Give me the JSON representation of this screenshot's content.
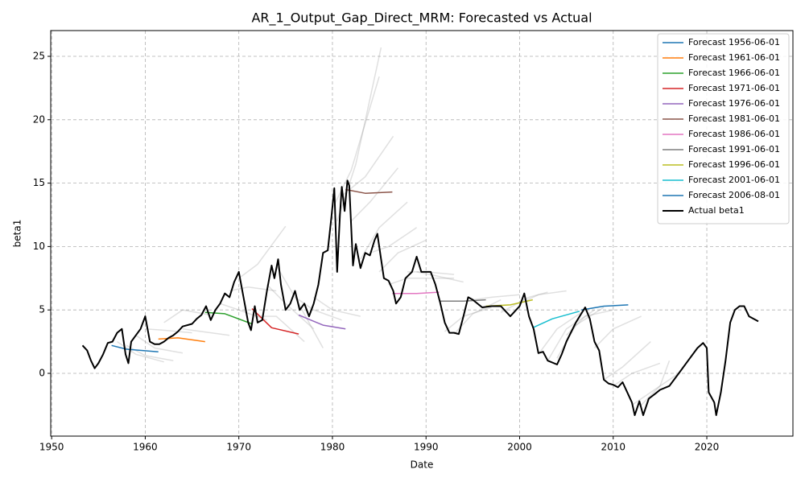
{
  "chart_data": {
    "type": "line",
    "title": "AR_1_Output_Gap_Direct_MRM: Forecasted vs Actual",
    "x_label": "Date",
    "y_label": "beta1",
    "xlim": [
      1949.9,
      2029.2
    ],
    "ylim": [
      -4.95,
      27.03
    ],
    "xticks": [
      1950,
      1960,
      1970,
      1980,
      1990,
      2000,
      2010,
      2020
    ],
    "yticks": [
      0,
      5,
      10,
      15,
      20,
      25
    ],
    "grid": true,
    "legend": "upper right",
    "gray_color": "#999999",
    "gray_forecasts": [
      {
        "x": [
          1957,
          1959,
          1962
        ],
        "values": [
          2.5,
          1.5,
          0.9
        ]
      },
      {
        "x": [
          1958,
          1960,
          1963
        ],
        "values": [
          2.2,
          1.4,
          1.0
        ]
      },
      {
        "x": [
          1959,
          1961,
          1964
        ],
        "values": [
          3.0,
          2.0,
          1.6
        ]
      },
      {
        "x": [
          1960,
          1962,
          1965
        ],
        "values": [
          3.5,
          3.4,
          3.2
        ]
      },
      {
        "x": [
          1962,
          1964,
          1967
        ],
        "values": [
          4.0,
          5.0,
          4.6
        ]
      },
      {
        "x": [
          1964,
          1966,
          1969
        ],
        "values": [
          3.5,
          3.3,
          3.0
        ]
      },
      {
        "x": [
          1968,
          1970,
          1973
        ],
        "values": [
          5.5,
          5.0,
          4.2
        ]
      },
      {
        "x": [
          1969,
          1971,
          1974
        ],
        "values": [
          6.5,
          6.8,
          6.5
        ]
      },
      {
        "x": [
          1970,
          1972,
          1975
        ],
        "values": [
          7.5,
          8.6,
          11.6
        ]
      },
      {
        "x": [
          1972,
          1974,
          1977
        ],
        "values": [
          4.5,
          4.5,
          2.5
        ]
      },
      {
        "x": [
          1973,
          1975,
          1978
        ],
        "values": [
          7,
          5.5,
          3.5
        ]
      },
      {
        "x": [
          1974,
          1976,
          1979
        ],
        "values": [
          8.5,
          6,
          2.0
        ]
      },
      {
        "x": [
          1976,
          1978,
          1981
        ],
        "values": [
          6,
          5,
          4.2
        ]
      },
      {
        "x": [
          1978,
          1980,
          1983
        ],
        "values": [
          6,
          5,
          4.5
        ]
      },
      {
        "x": [
          1980,
          1982,
          1985
        ],
        "values": [
          13,
          16,
          23.4
        ]
      },
      {
        "x": [
          1980.5,
          1982.5,
          1985.2
        ],
        "values": [
          12,
          16.5,
          25.7
        ]
      },
      {
        "x": [
          1981,
          1983.5,
          1986.5
        ],
        "values": [
          14,
          15.5,
          18.7
        ]
      },
      {
        "x": [
          1982,
          1984,
          1987
        ],
        "values": [
          12,
          13.5,
          16.2
        ]
      },
      {
        "x": [
          1983,
          1985,
          1988
        ],
        "values": [
          9,
          11.5,
          13.5
        ]
      },
      {
        "x": [
          1984,
          1986,
          1989
        ],
        "values": [
          9.5,
          10,
          11.5
        ]
      },
      {
        "x": [
          1985,
          1987,
          1990
        ],
        "values": [
          8,
          9.5,
          10.5
        ]
      },
      {
        "x": [
          1986,
          1988,
          1993
        ],
        "values": [
          7,
          7.5,
          7.5
        ]
      },
      {
        "x": [
          1988,
          1990,
          1993
        ],
        "values": [
          8,
          8,
          7.8
        ]
      },
      {
        "x": [
          1989,
          1991,
          1994
        ],
        "values": [
          8,
          7.7,
          7.2
        ]
      },
      {
        "x": [
          1992,
          1994,
          1997
        ],
        "values": [
          3.3,
          4.5,
          5.2
        ]
      },
      {
        "x": [
          1993,
          1995,
          1998
        ],
        "values": [
          3.1,
          4.7,
          5.8
        ]
      },
      {
        "x": [
          1995,
          1997,
          2000
        ],
        "values": [
          5.8,
          6.0,
          6.2
        ]
      },
      {
        "x": [
          1998,
          2001,
          2003
        ],
        "values": [
          4.8,
          6.0,
          6.4
        ]
      },
      {
        "x": [
          2000,
          2002,
          2005
        ],
        "values": [
          5.5,
          6.2,
          6.5
        ]
      },
      {
        "x": [
          2002,
          2004,
          2007
        ],
        "values": [
          1.5,
          3.5,
          5.0
        ]
      },
      {
        "x": [
          2003,
          2005,
          2008
        ],
        "values": [
          1.0,
          3.5,
          5.0
        ]
      },
      {
        "x": [
          2004,
          2006,
          2009
        ],
        "values": [
          1.2,
          3.8,
          5.2
        ]
      },
      {
        "x": [
          2005,
          2007,
          2010
        ],
        "values": [
          3,
          4.5,
          5.0
        ]
      },
      {
        "x": [
          2008,
          2010,
          2013
        ],
        "values": [
          2,
          3.5,
          4.5
        ]
      },
      {
        "x": [
          2009,
          2011,
          2014
        ],
        "values": [
          -0.5,
          0.5,
          2.5
        ]
      },
      {
        "x": [
          2010,
          2012,
          2015
        ],
        "values": [
          -1,
          0,
          0.8
        ]
      },
      {
        "x": [
          2012,
          2014,
          2017
        ],
        "values": [
          -2.5,
          -1.5,
          0
        ]
      },
      {
        "x": [
          2013,
          2015,
          2016
        ],
        "values": [
          -2.5,
          -1.0,
          1.0
        ]
      }
    ],
    "series": [
      {
        "name": "Forecast 1956-06-01",
        "color": "#1f77b4",
        "x": [
          1956.4,
          1958,
          1961.4
        ],
        "values": [
          2.2,
          1.9,
          1.7
        ]
      },
      {
        "name": "Forecast 1961-06-01",
        "color": "#ff7f0e",
        "x": [
          1961.4,
          1963.5,
          1966.4
        ],
        "values": [
          2.7,
          2.8,
          2.5
        ]
      },
      {
        "name": "Forecast 1966-06-01",
        "color": "#2ca02c",
        "x": [
          1966.4,
          1968.5,
          1971.4
        ],
        "values": [
          4.8,
          4.7,
          3.9
        ]
      },
      {
        "name": "Forecast 1971-06-01",
        "color": "#d62728",
        "x": [
          1971.4,
          1973.5,
          1976.4
        ],
        "values": [
          5.1,
          3.6,
          3.1
        ]
      },
      {
        "name": "Forecast 1976-06-01",
        "color": "#9467bd",
        "x": [
          1976.4,
          1979,
          1981.4
        ],
        "values": [
          4.6,
          3.8,
          3.5
        ]
      },
      {
        "name": "Forecast 1981-06-01",
        "color": "#8c564b",
        "x": [
          1981.4,
          1983.5,
          1986.4
        ],
        "values": [
          14.5,
          14.2,
          14.3
        ]
      },
      {
        "name": "Forecast 1986-06-01",
        "color": "#e377c2",
        "x": [
          1986.4,
          1989,
          1991.4
        ],
        "values": [
          6.3,
          6.3,
          6.4
        ]
      },
      {
        "name": "Forecast 1991-06-01",
        "color": "#7f7f7f",
        "x": [
          1991.4,
          1994,
          1996.4
        ],
        "values": [
          5.7,
          5.7,
          5.8
        ]
      },
      {
        "name": "Forecast 1996-06-01",
        "color": "#bcbd22",
        "x": [
          1996.4,
          1999,
          2001.4
        ],
        "values": [
          5.3,
          5.4,
          5.8
        ]
      },
      {
        "name": "Forecast 2001-06-01",
        "color": "#17becf",
        "x": [
          2001.4,
          2003.5,
          2006.4
        ],
        "values": [
          3.6,
          4.3,
          4.9
        ]
      },
      {
        "name": "Forecast 2006-08-01",
        "color": "#1f77b4",
        "x": [
          2006.6,
          2009,
          2011.6
        ],
        "values": [
          5.0,
          5.3,
          5.4
        ]
      },
      {
        "name": "Actual beta1",
        "color": "#000000",
        "width": 2,
        "x": [
          1953.3,
          1953.8,
          1954.2,
          1954.6,
          1955,
          1955.5,
          1956,
          1956.5,
          1957,
          1957.5,
          1957.9,
          1958.2,
          1958.5,
          1959,
          1959.5,
          1960,
          1960.5,
          1961,
          1961.5,
          1962,
          1962.5,
          1963,
          1963.5,
          1964,
          1965,
          1965.5,
          1966,
          1966.5,
          1967,
          1967.5,
          1968,
          1968.5,
          1969,
          1969.5,
          1970,
          1970.5,
          1971,
          1971.3,
          1971.7,
          1972,
          1972.5,
          1973,
          1973.5,
          1973.8,
          1974.2,
          1974.5,
          1975,
          1975.5,
          1976,
          1976.5,
          1977,
          1977.5,
          1978,
          1978.5,
          1979,
          1979.5,
          1979.9,
          1980.2,
          1980.5,
          1980.8,
          1981,
          1981.3,
          1981.6,
          1981.8,
          1982.2,
          1982.5,
          1983,
          1983.5,
          1984,
          1984.5,
          1984.8,
          1985.2,
          1985.5,
          1986,
          1986.5,
          1986.8,
          1987.3,
          1987.8,
          1988.5,
          1989,
          1989.5,
          1990,
          1990.5,
          1991,
          1991.5,
          1992,
          1992.5,
          1993,
          1993.5,
          1994,
          1994.5,
          1995,
          1996,
          1997,
          1998,
          1999,
          2000,
          2000.5,
          2001,
          2001.5,
          2002,
          2002.5,
          2003,
          2004,
          2004.5,
          2005,
          2006,
          2007,
          2007.5,
          2008,
          2008.5,
          2009,
          2009.5,
          2010,
          2010.5,
          2011,
          2011.5,
          2012,
          2012.3,
          2012.8,
          2013.2,
          2013.8,
          2014.5,
          2015,
          2016,
          2017,
          2018,
          2019,
          2019.6,
          2020,
          2020.2,
          2020.8,
          2021,
          2021.5,
          2022,
          2022.5,
          2023,
          2023.5,
          2024,
          2024.5,
          2025.5
        ],
        "values": [
          2.2,
          1.8,
          1.0,
          0.4,
          0.8,
          1.5,
          2.4,
          2.5,
          3.2,
          3.5,
          1.5,
          0.8,
          2.5,
          3.0,
          3.5,
          4.5,
          2.5,
          2.3,
          2.3,
          2.5,
          2.8,
          3.0,
          3.3,
          3.7,
          3.9,
          4.3,
          4.6,
          5.3,
          4.2,
          5.0,
          5.5,
          6.3,
          6.0,
          7.2,
          8.0,
          6.0,
          4.0,
          3.4,
          5.3,
          4.0,
          4.2,
          6.5,
          8.5,
          7.5,
          9.0,
          7.0,
          5.0,
          5.5,
          6.5,
          5.0,
          5.5,
          4.5,
          5.5,
          7.0,
          9.5,
          9.7,
          12.4,
          14.6,
          8.0,
          12.5,
          14.7,
          12.8,
          15.2,
          14.8,
          8.5,
          10.2,
          8.3,
          9.5,
          9.3,
          10.5,
          11.0,
          9.0,
          7.5,
          7.3,
          6.5,
          5.5,
          6.0,
          7.5,
          8.0,
          9.2,
          8.0,
          8.0,
          8.0,
          7.0,
          5.6,
          4.0,
          3.2,
          3.2,
          3.1,
          4.5,
          6.0,
          5.8,
          5.2,
          5.3,
          5.3,
          4.5,
          5.3,
          6.3,
          4.5,
          3.5,
          1.6,
          1.7,
          1.0,
          0.7,
          1.5,
          2.5,
          4.0,
          5.2,
          4.3,
          2.5,
          1.8,
          -0.5,
          -0.8,
          -0.9,
          -1.1,
          -0.7,
          -1.5,
          -2.3,
          -3.3,
          -2.2,
          -3.3,
          -2.0,
          -1.6,
          -1.3,
          -1.0,
          0,
          1.0,
          2.0,
          2.4,
          2.0,
          -1.5,
          -2.3,
          -3.3,
          -1.5,
          1.0,
          4.0,
          5.0,
          5.3,
          5.3,
          4.5,
          4.1
        ]
      }
    ]
  }
}
